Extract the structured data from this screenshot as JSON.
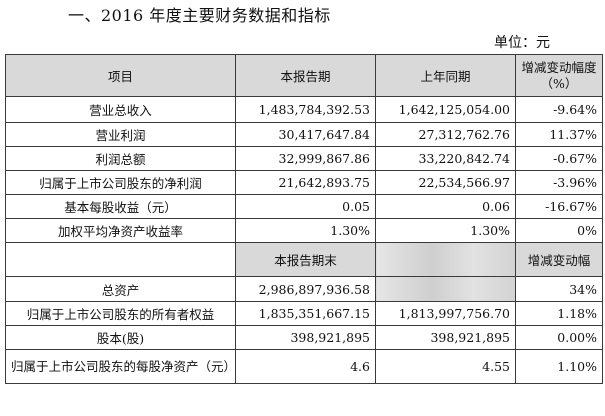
{
  "heading": "一、2016 年度主要财务数据和指标",
  "unit": "单位：元",
  "header": {
    "item": "项目",
    "current": "本报告期",
    "prior": "上年同期",
    "change": "增减变动幅度（%）"
  },
  "rows_top": [
    {
      "item": "营业总收入",
      "current": "1,483,784,392.53",
      "prior": "1,642,125,054.00",
      "change": "-9.64%"
    },
    {
      "item": "营业利润",
      "current": "30,417,647.84",
      "prior": "27,312,762.76",
      "change": "11.37%"
    },
    {
      "item": "利润总额",
      "current": "32,999,867.86",
      "prior": "33,220,842.74",
      "change": "-0.67%"
    },
    {
      "item": "归属于上市公司股东的净利润",
      "current": "21,642,893.75",
      "prior": "22,534,566.97",
      "change": "-3.96%"
    },
    {
      "item": "基本每股收益（元）",
      "current": "0.05",
      "prior": "0.06",
      "change": "-16.67%"
    },
    {
      "item": "加权平均净资产收益率",
      "current": "1.30%",
      "prior": "1.30%",
      "change": "0%"
    }
  ],
  "subheader": {
    "current": "本报告期末",
    "change": "增减变动幅"
  },
  "rows_bottom": [
    {
      "item": "总资产",
      "current": "2,986,897,936.58",
      "prior": "",
      "change": "34%"
    },
    {
      "item": "归属于上市公司股东的所有者权益",
      "current": "1,835,351,667.15",
      "prior": "1,813,997,756.70",
      "change": "1.18%"
    },
    {
      "item": "股本(股)",
      "current": "398,921,895",
      "prior": "398,921,895",
      "change": "0.00%"
    },
    {
      "item": "归属于上市公司股东的每股净资产（元）",
      "current": "4.6",
      "prior": "4.55",
      "change": "1.10%"
    }
  ]
}
